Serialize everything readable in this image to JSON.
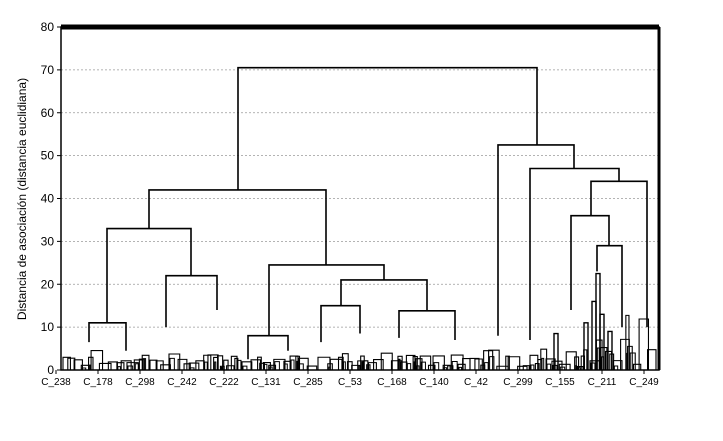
{
  "chart_data": {
    "type": "dendrogram",
    "title": "",
    "ylabel": "Distancia de asociación (distancia euclidiana)",
    "xlabel": "",
    "ylim": [
      0,
      80
    ],
    "yticks": [
      0,
      10,
      20,
      30,
      40,
      50,
      60,
      70,
      80
    ],
    "grid": true,
    "leaf_tick_labels": [
      "C_238",
      "C_178",
      "C_298",
      "C_242",
      "C_222",
      "C_131",
      "C_285",
      "C_53",
      "C_168",
      "C_140",
      "C_42",
      "C_299",
      "C_155",
      "C_211",
      "C_249"
    ],
    "merges": [
      {
        "id": "root",
        "height": 70.5,
        "children": [
          "left_main",
          "right_main"
        ]
      },
      {
        "id": "left_main",
        "height": 42,
        "children": [
          "group_A",
          "group_B"
        ]
      },
      {
        "id": "group_A",
        "height": 33,
        "children": [
          "A1",
          "A2"
        ]
      },
      {
        "id": "A1",
        "height": 11,
        "children": [
          "C_238..C_178",
          "C_178..C_298"
        ]
      },
      {
        "id": "A2",
        "height": 22,
        "children": [
          "C_298..C_242",
          "C_242..C_222"
        ]
      },
      {
        "id": "group_B",
        "height": 24.5,
        "children": [
          "B1",
          "B2"
        ]
      },
      {
        "id": "B1",
        "height": 8,
        "children": [
          "C_131",
          "C_131b"
        ]
      },
      {
        "id": "B2",
        "height": 21,
        "children": [
          "B2a",
          "B2b"
        ]
      },
      {
        "id": "B2a",
        "height": 15,
        "children": [
          "C_285",
          "C_53"
        ]
      },
      {
        "id": "B2b",
        "height": 13.8,
        "children": [
          "C_168",
          "C_140"
        ]
      },
      {
        "id": "right_main",
        "height": 52.5,
        "children": [
          "C_42",
          "R1"
        ]
      },
      {
        "id": "R1",
        "height": 47,
        "children": [
          "C_299",
          "R2"
        ]
      },
      {
        "id": "R2",
        "height": 44,
        "children": [
          "R3",
          "C_249"
        ]
      },
      {
        "id": "R3",
        "height": 36,
        "children": [
          "C_155",
          "R4"
        ]
      },
      {
        "id": "R4",
        "height": 29,
        "children": [
          "C_211",
          "C_211b"
        ]
      }
    ]
  }
}
